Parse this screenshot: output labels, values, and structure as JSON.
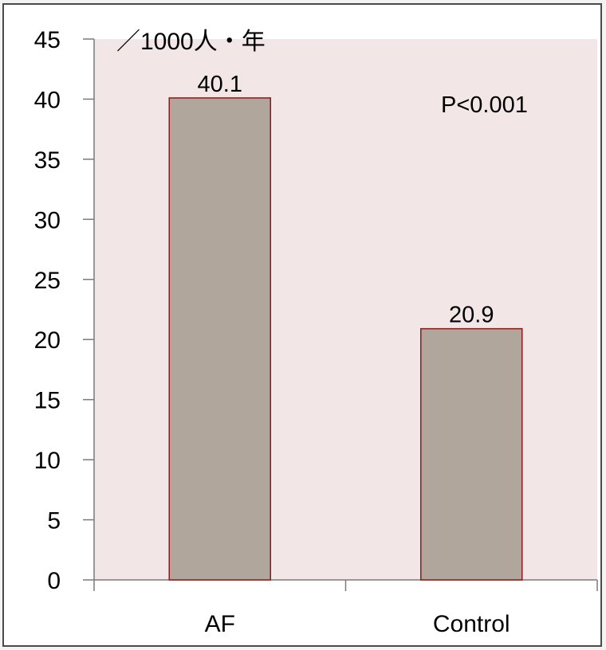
{
  "chart_data": {
    "type": "bar",
    "categories": [
      "AF",
      "Control"
    ],
    "values": [
      40.1,
      20.9
    ],
    "data_labels": [
      "40.1",
      "20.9"
    ],
    "title": "",
    "xlabel": "",
    "ylabel": "",
    "unit_label": "／1000人・年",
    "annotation": "P<0.001",
    "ylim": [
      0,
      45
    ],
    "yticks": [
      0,
      5,
      10,
      15,
      20,
      25,
      30,
      35,
      40,
      45
    ],
    "ytick_labels": [
      "0",
      "5",
      "10",
      "15",
      "20",
      "25",
      "30",
      "35",
      "40",
      "45"
    ],
    "grid": false,
    "legend": "none",
    "colors": {
      "plot_background": "#f2e6e6",
      "bar_fill": "#b0a69b",
      "bar_stroke": "#8b1a1a",
      "axis": "#7a7a7a",
      "frame": "#4a4a4a"
    }
  }
}
